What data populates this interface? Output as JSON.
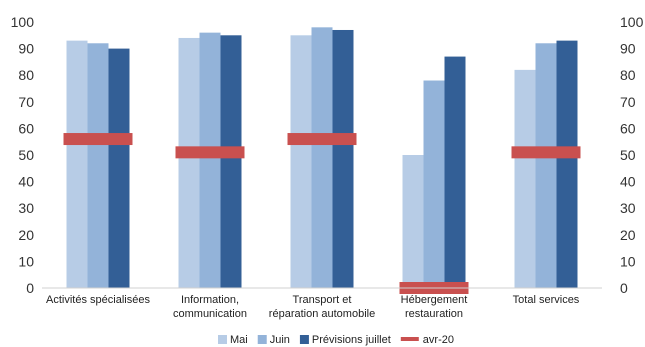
{
  "chart_data": {
    "type": "bar",
    "categories": [
      [
        "Activités spécialisées"
      ],
      [
        "Information,",
        "communication"
      ],
      [
        "Transport et",
        "réparation automobile"
      ],
      [
        "Hébergement",
        "restauration"
      ],
      [
        "Total services"
      ]
    ],
    "series": [
      {
        "name": "Mai",
        "type": "bar",
        "color": "#b7cce6",
        "values": [
          93,
          94,
          95,
          50,
          82
        ]
      },
      {
        "name": "Juin",
        "type": "bar",
        "color": "#93b3d9",
        "values": [
          92,
          96,
          98,
          78,
          92
        ]
      },
      {
        "name": "Prévisions juillet",
        "type": "bar",
        "color": "#335f96",
        "values": [
          90,
          95,
          97,
          87,
          93
        ]
      },
      {
        "name": "avr-20",
        "type": "marker",
        "color": "#c9504f",
        "values": [
          56,
          51,
          56,
          0,
          51
        ]
      }
    ],
    "ylim": [
      0,
      100
    ],
    "yticks": [
      0,
      10,
      20,
      30,
      40,
      50,
      60,
      70,
      80,
      90,
      100
    ],
    "y_axis_both_sides": true,
    "grid": false,
    "legend_position": "bottom-center"
  }
}
